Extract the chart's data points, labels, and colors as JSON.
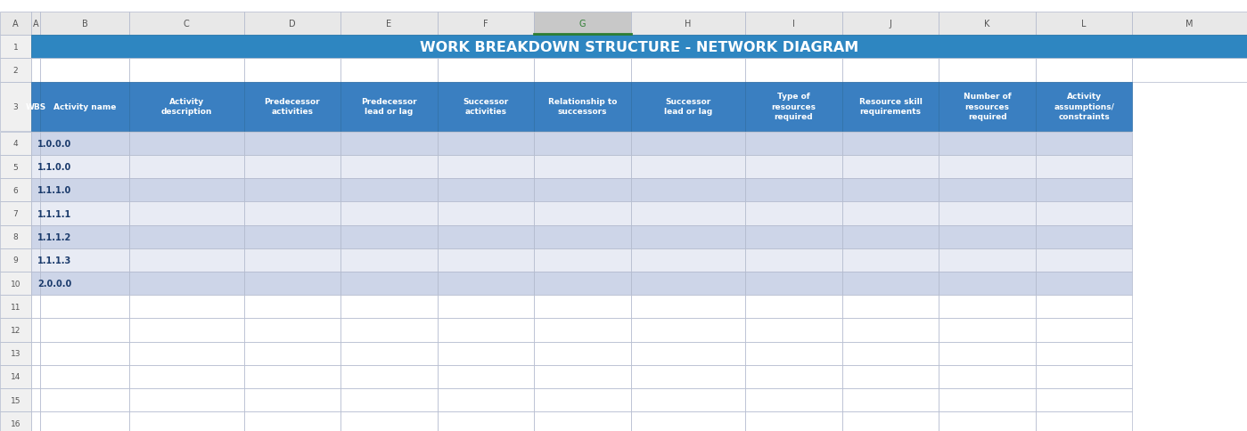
{
  "title": "WORK BREAKDOWN STRUCTURE - NETWORK DIAGRAM",
  "title_bg": "#2E86C1",
  "title_color": "#FFFFFF",
  "header_bg": "#3A7FC1",
  "header_color": "#FFFFFF",
  "col_letters": [
    "A",
    "B",
    "C",
    "D",
    "E",
    "F",
    "G",
    "H",
    "I",
    "J",
    "K",
    "L",
    "M"
  ],
  "row_numbers": [
    "1",
    "2",
    "3",
    "4",
    "5",
    "6",
    "7",
    "8",
    "9",
    "10",
    "11",
    "12",
    "13",
    "14",
    "15",
    "16"
  ],
  "headers": [
    "WBS",
    "Activity name",
    "Activity\ndescription",
    "Predecessor\nactivities",
    "Predecessor\nlead or lag",
    "Successor\nactivities",
    "Relationship to\nsuccessors",
    "Successor\nlead or lag",
    "Type of\nresources\nrequired",
    "Resource skill\nrequirements",
    "Number of\nresources\nrequired",
    "Activity\nassumptions/\nconstraints"
  ],
  "wbs_data": [
    [
      "1.0.0.0",
      "",
      "",
      "",
      "",
      "",
      "",
      "",
      "",
      "",
      "",
      ""
    ],
    [
      "1.1.0.0",
      "",
      "",
      "",
      "",
      "",
      "",
      "",
      "",
      "",
      "",
      ""
    ],
    [
      "1.1.1.0",
      "",
      "",
      "",
      "",
      "",
      "",
      "",
      "",
      "",
      "",
      ""
    ],
    [
      "1.1.1.1",
      "",
      "",
      "",
      "",
      "",
      "",
      "",
      "",
      "",
      "",
      ""
    ],
    [
      "1.1.1.2",
      "",
      "",
      "",
      "",
      "",
      "",
      "",
      "",
      "",
      "",
      ""
    ],
    [
      "1.1.1.3",
      "",
      "",
      "",
      "",
      "",
      "",
      "",
      "",
      "",
      "",
      ""
    ],
    [
      "2.0.0.0",
      "",
      "",
      "",
      "",
      "",
      "",
      "",
      "",
      "",
      "",
      ""
    ]
  ],
  "row_colors_data": [
    "#CDD5E8",
    "#E8EBF4",
    "#CDD5E8",
    "#E8EBF4",
    "#CDD5E8",
    "#E8EBF4",
    "#CDD5E8"
  ],
  "empty_row_color": "#FFFFFF",
  "grid_color": "#B0B8CC",
  "row_num_bg": "#F0F0F0",
  "col_letter_bg": "#E8E8E8",
  "selected_col_bg": "#C8C8C8",
  "selected_col_letter": "G",
  "col_widths": [
    0.35,
    3.5,
    4.5,
    3.8,
    3.8,
    3.8,
    3.8,
    4.5,
    3.8,
    3.8,
    3.8,
    3.8,
    4.5
  ],
  "figsize": [
    13.99,
    4.85
  ],
  "dpi": 100
}
